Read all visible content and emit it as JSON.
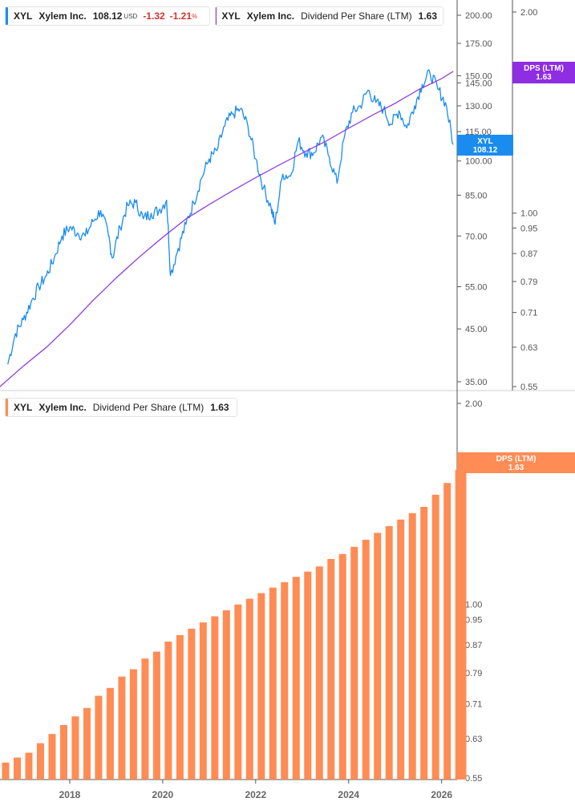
{
  "legends": {
    "price": {
      "ticker": "XYL",
      "name": "Xylem Inc.",
      "value": "108.12",
      "currency": "USD",
      "change": "-1.32",
      "change_pct": "-1.21",
      "pct_sign": "%"
    },
    "dps_top": {
      "ticker": "XYL",
      "name": "Xylem Inc.",
      "metric": "Dividend Per Share (LTM)",
      "value": "1.63"
    },
    "dps_bottom": {
      "ticker": "XYL",
      "name": "Xylem Inc.",
      "metric": "Dividend Per Share (LTM)",
      "value": "1.63"
    }
  },
  "colors": {
    "price": "#1a8cf0",
    "dps_line": "#8b2fe0",
    "dps_bar": "#ff8c55",
    "dps_badge_top": "#8e2de2",
    "grid_axis": "#555555"
  },
  "tags": {
    "price": {
      "line1": "XYL",
      "line2": "108.12"
    },
    "dps_top": {
      "line1": "DPS (LTM)",
      "line2": "1.63"
    },
    "dps_bottom": {
      "line1": "DPS (LTM)",
      "line2": "1.63"
    }
  },
  "chart_data": [
    {
      "type": "line",
      "scale": "log",
      "x_range": [
        "2016-07",
        "2026-05"
      ],
      "y_axis_price_ticks": [
        35,
        45,
        55,
        70,
        85,
        100,
        115,
        130,
        145,
        150,
        175,
        200
      ],
      "y_axis_price_labels": [
        "35.00",
        "45.00",
        "55.00",
        "70.00",
        "85.00",
        "100.00",
        "115.00",
        "130.00",
        "145.00",
        "150.00",
        "175.00",
        "200.00"
      ],
      "y_axis_dps_ticks": [
        0.55,
        0.63,
        0.71,
        0.79,
        0.87,
        0.95,
        1.0,
        2.0
      ],
      "y_axis_dps_labels": [
        "0.55",
        "0.63",
        "0.71",
        "0.79",
        "0.87",
        "0.95",
        "1.00",
        "2.00"
      ],
      "series": [
        {
          "name": "XYL Xylem Inc.",
          "axis": "price",
          "points": [
            [
              "2016-09",
              38
            ],
            [
              "2016-11",
              44
            ],
            [
              "2017-01",
              47
            ],
            [
              "2017-03",
              51
            ],
            [
              "2017-05",
              55
            ],
            [
              "2017-07",
              58
            ],
            [
              "2017-09",
              63
            ],
            [
              "2017-11",
              70
            ],
            [
              "2018-01",
              73
            ],
            [
              "2018-03",
              71
            ],
            [
              "2018-05",
              70
            ],
            [
              "2018-07",
              75
            ],
            [
              "2018-09",
              79
            ],
            [
              "2018-11",
              70
            ],
            [
              "2018-12",
              63
            ],
            [
              "2019-02",
              73
            ],
            [
              "2019-04",
              81
            ],
            [
              "2019-06",
              82
            ],
            [
              "2019-08",
              76
            ],
            [
              "2019-10",
              78
            ],
            [
              "2019-12",
              79
            ],
            [
              "2020-02",
              83
            ],
            [
              "2020-03",
              58
            ],
            [
              "2020-05",
              66
            ],
            [
              "2020-07",
              74
            ],
            [
              "2020-09",
              82
            ],
            [
              "2020-11",
              92
            ],
            [
              "2021-01",
              101
            ],
            [
              "2021-03",
              105
            ],
            [
              "2021-05",
              118
            ],
            [
              "2021-07",
              125
            ],
            [
              "2021-09",
              128
            ],
            [
              "2021-11",
              118
            ],
            [
              "2022-01",
              101
            ],
            [
              "2022-03",
              88
            ],
            [
              "2022-05",
              80
            ],
            [
              "2022-06",
              74
            ],
            [
              "2022-08",
              94
            ],
            [
              "2022-10",
              93
            ],
            [
              "2022-12",
              110
            ],
            [
              "2023-02",
              104
            ],
            [
              "2023-04",
              104
            ],
            [
              "2023-06",
              112
            ],
            [
              "2023-08",
              102
            ],
            [
              "2023-10",
              90
            ],
            [
              "2023-12",
              113
            ],
            [
              "2024-02",
              126
            ],
            [
              "2024-04",
              130
            ],
            [
              "2024-06",
              140
            ],
            [
              "2024-08",
              132
            ],
            [
              "2024-10",
              128
            ],
            [
              "2024-12",
              119
            ],
            [
              "2025-02",
              127
            ],
            [
              "2025-04",
              117
            ],
            [
              "2025-06",
              130
            ],
            [
              "2025-08",
              144
            ],
            [
              "2025-10",
              152
            ],
            [
              "2025-12",
              141
            ],
            [
              "2026-02",
              132
            ],
            [
              "2026-04",
              108.12
            ]
          ]
        },
        {
          "name": "XYL Xylem Inc. Dividend Per Share (LTM)",
          "axis": "dps",
          "points": [
            [
              "2016-07",
              0.55
            ],
            [
              "2017-01",
              0.59
            ],
            [
              "2017-07",
              0.63
            ],
            [
              "2018-01",
              0.68
            ],
            [
              "2018-07",
              0.74
            ],
            [
              "2019-01",
              0.8
            ],
            [
              "2019-07",
              0.86
            ],
            [
              "2020-01",
              0.92
            ],
            [
              "2020-07",
              0.98
            ],
            [
              "2021-01",
              1.03
            ],
            [
              "2021-07",
              1.08
            ],
            [
              "2022-01",
              1.13
            ],
            [
              "2022-07",
              1.18
            ],
            [
              "2023-01",
              1.23
            ],
            [
              "2023-07",
              1.28
            ],
            [
              "2024-01",
              1.34
            ],
            [
              "2024-07",
              1.4
            ],
            [
              "2025-01",
              1.46
            ],
            [
              "2025-07",
              1.53
            ],
            [
              "2026-01",
              1.59
            ],
            [
              "2026-04",
              1.63
            ]
          ]
        }
      ]
    },
    {
      "type": "bar",
      "scale": "log",
      "series": [
        {
          "name": "XYL Xylem Inc. Dividend Per Share (LTM)"
        }
      ],
      "x_range": [
        "2016-07",
        "2026-05"
      ],
      "x_ticks": [
        "2018",
        "2020",
        "2022",
        "2024",
        "2026"
      ],
      "ylim": [
        0.55,
        2.0
      ],
      "y_ticks": [
        0.55,
        0.63,
        0.71,
        0.79,
        0.87,
        0.95,
        1.0,
        2.0
      ],
      "y_labels": [
        "0.55",
        "0.63",
        "0.71",
        "0.79",
        "0.87",
        "0.95",
        "1.00",
        "2.00"
      ],
      "bars": [
        [
          "2016-07",
          0.58
        ],
        [
          "2016-10",
          0.59
        ],
        [
          "2017-01",
          0.6
        ],
        [
          "2017-04",
          0.62
        ],
        [
          "2017-07",
          0.64
        ],
        [
          "2017-10",
          0.66
        ],
        [
          "2018-01",
          0.68
        ],
        [
          "2018-04",
          0.7
        ],
        [
          "2018-07",
          0.73
        ],
        [
          "2018-10",
          0.75
        ],
        [
          "2019-01",
          0.78
        ],
        [
          "2019-04",
          0.8
        ],
        [
          "2019-07",
          0.83
        ],
        [
          "2019-10",
          0.85
        ],
        [
          "2020-01",
          0.88
        ],
        [
          "2020-04",
          0.9
        ],
        [
          "2020-07",
          0.92
        ],
        [
          "2020-10",
          0.94
        ],
        [
          "2021-01",
          0.96
        ],
        [
          "2021-04",
          0.98
        ],
        [
          "2021-07",
          1.0
        ],
        [
          "2021-10",
          1.02
        ],
        [
          "2022-01",
          1.04
        ],
        [
          "2022-04",
          1.06
        ],
        [
          "2022-07",
          1.08
        ],
        [
          "2022-10",
          1.1
        ],
        [
          "2023-01",
          1.12
        ],
        [
          "2023-04",
          1.14
        ],
        [
          "2023-07",
          1.17
        ],
        [
          "2023-10",
          1.19
        ],
        [
          "2024-01",
          1.22
        ],
        [
          "2024-04",
          1.25
        ],
        [
          "2024-07",
          1.28
        ],
        [
          "2024-10",
          1.31
        ],
        [
          "2025-01",
          1.34
        ],
        [
          "2025-04",
          1.37
        ],
        [
          "2025-07",
          1.4
        ],
        [
          "2025-10",
          1.46
        ],
        [
          "2026-01",
          1.52
        ],
        [
          "2026-04",
          1.59
        ],
        [
          "2026-05",
          1.63
        ]
      ]
    }
  ]
}
